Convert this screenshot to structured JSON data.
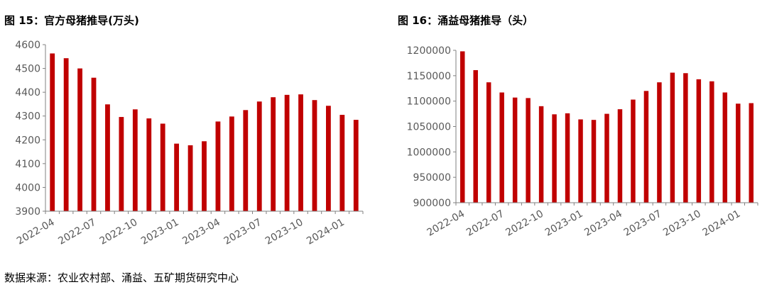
{
  "source_note": "数据来源：农业农村部、涌益、五矿期货研究中心",
  "colors": {
    "bar": "#C00000",
    "axis": "#808080",
    "label": "#595959"
  },
  "chart_data": [
    {
      "type": "bar",
      "title": "图 15：官方母猪推导(万头)",
      "categories": [
        "2022-04",
        "2022-05",
        "2022-06",
        "2022-07",
        "2022-08",
        "2022-09",
        "2022-10",
        "2022-11",
        "2022-12",
        "2023-01",
        "2023-02",
        "2023-03",
        "2023-04",
        "2023-05",
        "2023-06",
        "2023-07",
        "2023-08",
        "2023-09",
        "2023-10",
        "2023-11",
        "2023-12",
        "2024-01",
        "2024-02"
      ],
      "tick_labels": [
        "2022-04",
        "2022-07",
        "2022-10",
        "2023-01",
        "2023-04",
        "2023-07",
        "2023-10",
        "2024-01"
      ],
      "values": [
        4563,
        4543,
        4500,
        4461,
        4349,
        4296,
        4328,
        4290,
        4268,
        4184,
        4177,
        4194,
        4277,
        4298,
        4325,
        4361,
        4379,
        4389,
        4391,
        4367,
        4343,
        4305,
        4284
      ],
      "ylim": [
        3900,
        4600
      ],
      "yticks": [
        3900,
        4000,
        4100,
        4200,
        4300,
        4400,
        4500,
        4600
      ],
      "ytick_labels": [
        "3900",
        "4000",
        "4100",
        "4200",
        "4300",
        "4400",
        "4500",
        "4600"
      ],
      "xlabel": "",
      "ylabel": "",
      "grid": false,
      "legend": "none"
    },
    {
      "type": "bar",
      "title": "图 16：涌益母猪推导（头）",
      "categories": [
        "2022-04",
        "2022-05",
        "2022-06",
        "2022-07",
        "2022-08",
        "2022-09",
        "2022-10",
        "2022-11",
        "2022-12",
        "2023-01",
        "2023-02",
        "2023-03",
        "2023-04",
        "2023-05",
        "2023-06",
        "2023-07",
        "2023-08",
        "2023-09",
        "2023-10",
        "2023-11",
        "2023-12",
        "2024-01",
        "2024-02"
      ],
      "tick_labels": [
        "2022-04",
        "2022-07",
        "2022-10",
        "2023-01",
        "2023-04",
        "2023-07",
        "2023-10",
        "2024-01"
      ],
      "values": [
        1198000,
        1161000,
        1137000,
        1117000,
        1107000,
        1106000,
        1090000,
        1074000,
        1076000,
        1064000,
        1063000,
        1075000,
        1084000,
        1103000,
        1120000,
        1137000,
        1156000,
        1155000,
        1143000,
        1139000,
        1117000,
        1095000,
        1096000
      ],
      "ylim": [
        900000,
        1200000
      ],
      "yticks": [
        900000,
        950000,
        1000000,
        1050000,
        1100000,
        1150000,
        1200000
      ],
      "ytick_labels": [
        "900000",
        "950000",
        "1000000",
        "1050000",
        "1100000",
        "1150000",
        "1200000"
      ],
      "xlabel": "",
      "ylabel": "",
      "grid": false,
      "legend": "none"
    }
  ]
}
